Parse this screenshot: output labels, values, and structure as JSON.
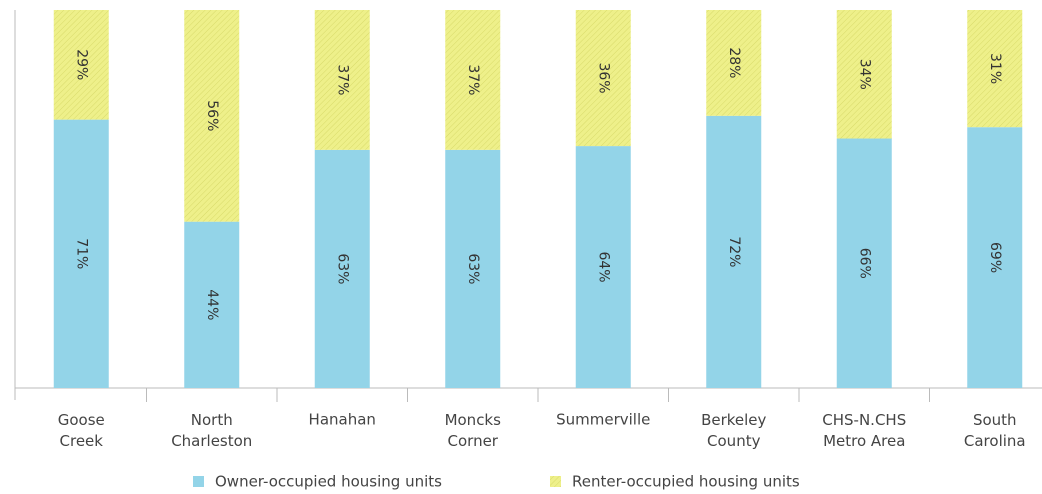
{
  "chart_data": {
    "type": "stacked_bar",
    "categories": [
      "Goose Creek",
      "North Charleston",
      "Hanahan",
      "Moncks Corner",
      "Summerville",
      "Berkeley County",
      "CHS-N.CHS Metro Area",
      "South Carolina"
    ],
    "series": [
      {
        "name": "Owner-occupied housing units",
        "color": "#93d4e8",
        "values": [
          71,
          44,
          63,
          63,
          64,
          72,
          66,
          69
        ],
        "value_labels": [
          "71%",
          "44%",
          "63%",
          "63%",
          "64%",
          "72%",
          "66%",
          "69%"
        ]
      },
      {
        "name": "Renter-occupied housing units",
        "color": "#eef08a",
        "values": [
          29,
          56,
          37,
          37,
          36,
          28,
          34,
          31
        ],
        "value_labels": [
          "29%",
          "56%",
          "37%",
          "37%",
          "36%",
          "28%",
          "34%",
          "31%"
        ]
      }
    ],
    "ylim": [
      0,
      100
    ]
  }
}
